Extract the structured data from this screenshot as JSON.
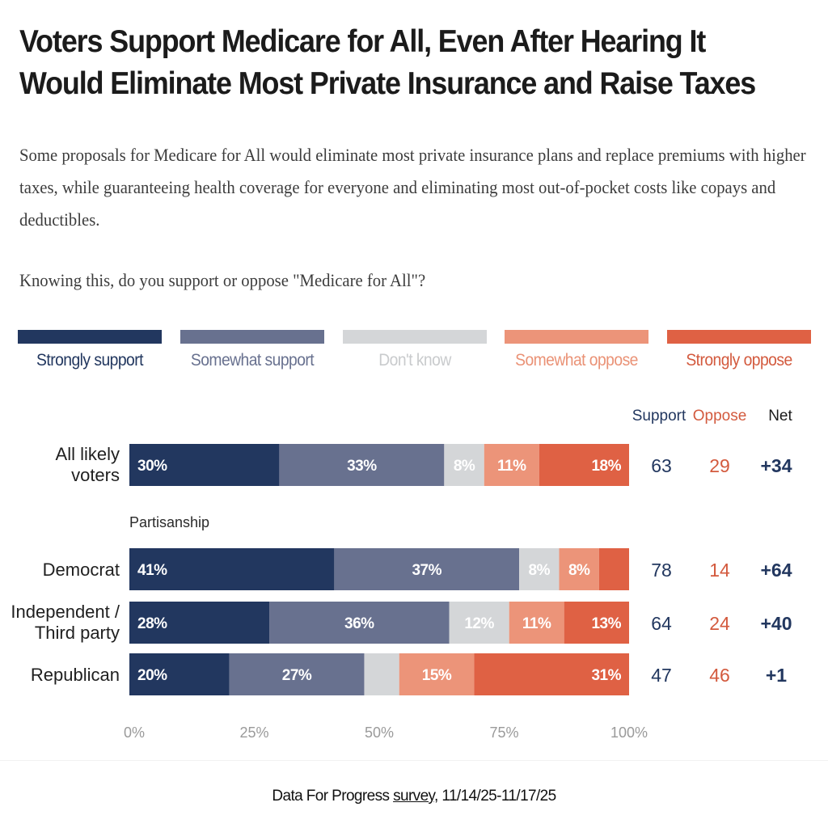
{
  "title": "Voters Support Medicare for All, Even After Hearing It Would Eliminate Most Private Insurance and Raise Taxes",
  "subtitle": "Some proposals for Medicare for All would eliminate most private insurance plans and replace premiums with higher taxes, while guaranteeing health coverage for everyone and eliminating most out-of-pocket costs like copays and deductibles.",
  "question": "Knowing this, do you support or oppose \"Medicare for All\"?",
  "legend": [
    {
      "label": "Strongly support",
      "color": "#22375f",
      "text_color": "#22375f"
    },
    {
      "label": "Somewhat support",
      "color": "#68718f",
      "text_color": "#68718f"
    },
    {
      "label": "Don't know",
      "color": "#d4d6d8",
      "text_color": "#c9cbcd"
    },
    {
      "label": "Somewhat oppose",
      "color": "#ec9479",
      "text_color": "#ea9276"
    },
    {
      "label": "Strongly oppose",
      "color": "#df6144",
      "text_color": "#d35a3e"
    }
  ],
  "summary_headers": {
    "support": "Support",
    "oppose": "Oppose",
    "net": "Net"
  },
  "summary_colors": {
    "support": "#22375f",
    "oppose": "#d35a3e",
    "net": "#22375f"
  },
  "footer": {
    "prefix": "Data For Progress ",
    "link": "survey",
    "suffix": ", 11/14/25-11/17/25"
  },
  "chart_data": {
    "type": "bar",
    "orientation": "horizontal-stacked-100",
    "title": "Voters Support Medicare for All, Even After Hearing It Would Eliminate Most Private Insurance and Raise Taxes",
    "xlabel": "",
    "ylabel": "",
    "xlim": [
      0,
      100
    ],
    "x_ticks": [
      "0%",
      "25%",
      "50%",
      "75%",
      "100%"
    ],
    "x_tick_values": [
      0,
      25,
      50,
      75,
      100
    ],
    "legend_position": "top",
    "series_names": [
      "Strongly support",
      "Somewhat support",
      "Don't know",
      "Somewhat oppose",
      "Strongly oppose"
    ],
    "group_label": "Partisanship",
    "rows": [
      {
        "category": "All likely voters",
        "label_lines": [
          "All likely",
          "voters"
        ],
        "values": [
          30,
          33,
          8,
          11,
          18
        ],
        "labels": [
          "30%",
          "33%",
          "8%",
          "11%",
          "18%"
        ],
        "support": "63",
        "oppose": "29",
        "net": "+34"
      },
      {
        "category": "Democrat",
        "label_lines": [
          "Democrat"
        ],
        "values": [
          41,
          37,
          8,
          8,
          6
        ],
        "labels": [
          "41%",
          "37%",
          "8%",
          "8%",
          ""
        ],
        "support": "78",
        "oppose": "14",
        "net": "+64"
      },
      {
        "category": "Independent / Third party",
        "label_lines": [
          "Independent /",
          "Third party"
        ],
        "values": [
          28,
          36,
          12,
          11,
          13
        ],
        "labels": [
          "28%",
          "36%",
          "12%",
          "11%",
          "13%"
        ],
        "support": "64",
        "oppose": "24",
        "net": "+40"
      },
      {
        "category": "Republican",
        "label_lines": [
          "Republican"
        ],
        "values": [
          20,
          27,
          7,
          15,
          31
        ],
        "labels": [
          "20%",
          "27%",
          "",
          "15%",
          "31%"
        ],
        "support": "47",
        "oppose": "46",
        "net": "+1"
      }
    ]
  }
}
